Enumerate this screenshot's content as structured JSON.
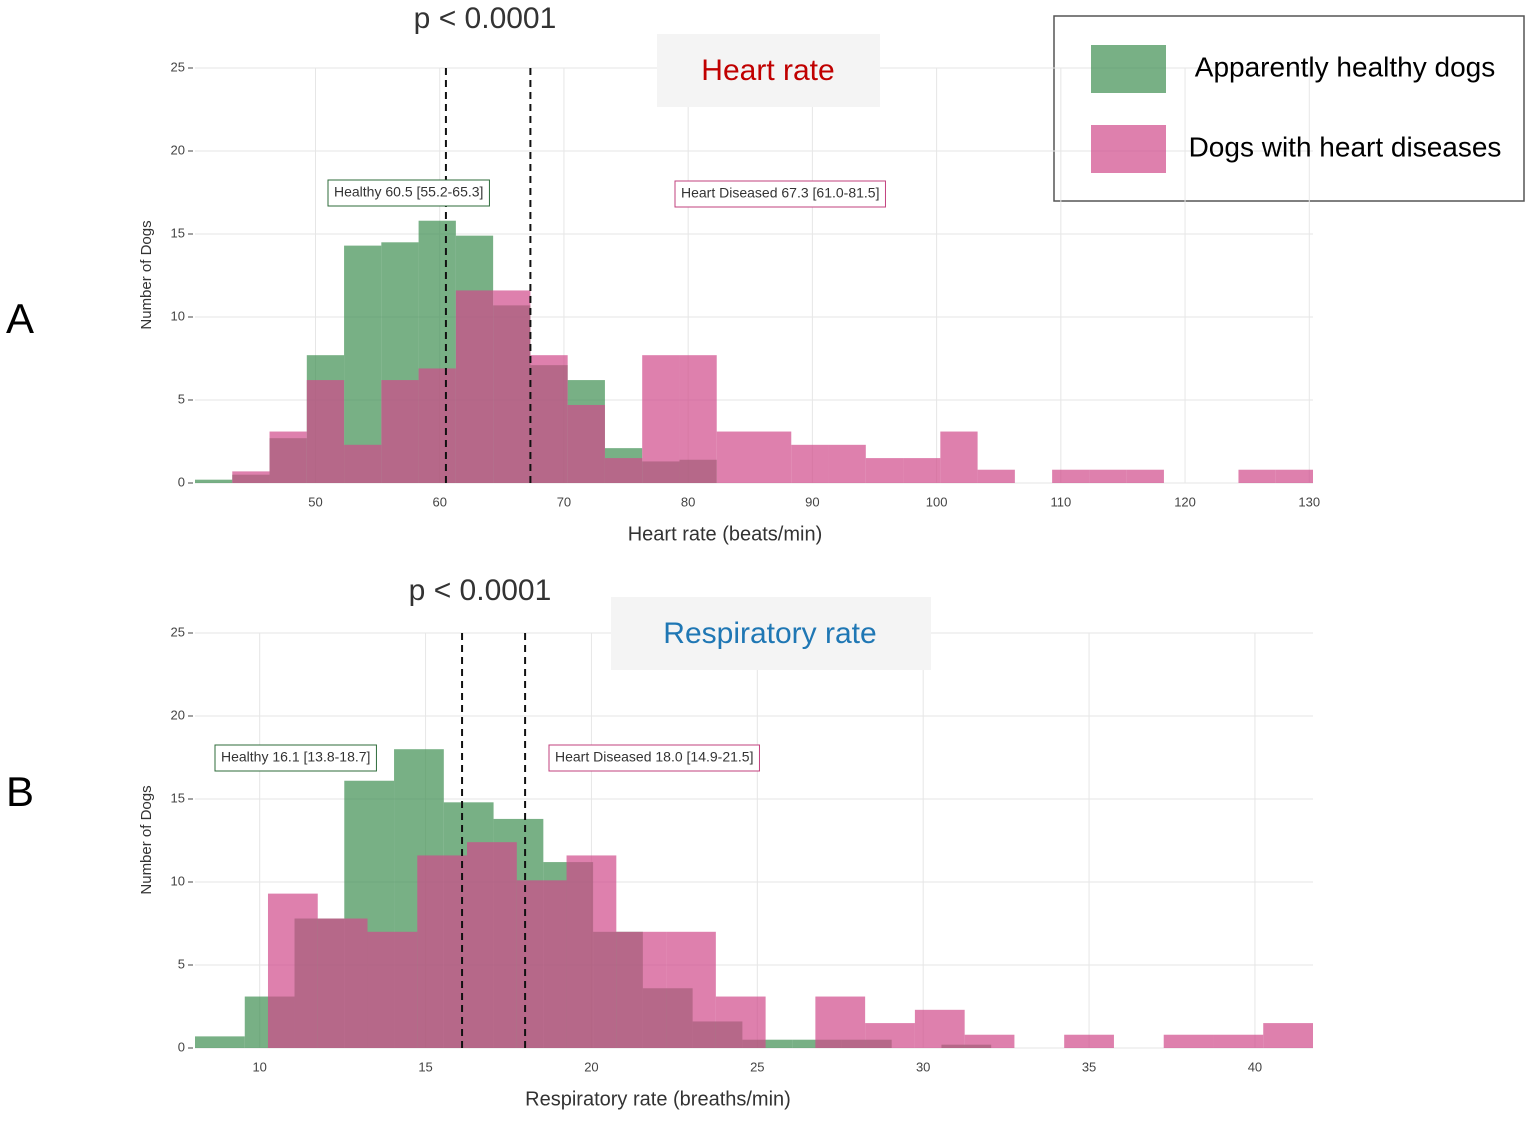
{
  "chart_data": [
    {
      "type": "histogram",
      "panel_label": "A",
      "title": "Heart rate",
      "title_color": "#c00000",
      "annotation": "p < 0.0001",
      "x_label": "Heart rate (beats/min)",
      "y_label": "Number of Dogs",
      "xlim": [
        40.3,
        130.3
      ],
      "ylim": [
        0,
        25
      ],
      "xticks": [
        50,
        60,
        70,
        80,
        90,
        100,
        110,
        120,
        130
      ],
      "yticks": [
        0,
        5,
        10,
        15,
        20,
        25
      ],
      "grid": true,
      "medians": [
        60.5,
        67.3
      ],
      "median_labels": [
        {
          "text": "Healthy 60.5 [55.2-65.3]",
          "color": "#2e6b3a"
        },
        {
          "text": "Heart Diseased 67.3 [61.0-81.5]",
          "color": "#c2407e"
        }
      ],
      "series": [
        {
          "name": "Apparently healthy dogs",
          "color": "#3f8f51",
          "bins": [
            40.3,
            43.3,
            46.3,
            49.3,
            52.3,
            55.3,
            58.3,
            61.3,
            64.3,
            67.3,
            70.3,
            73.3,
            76.3,
            79.3,
            82.3
          ],
          "values": [
            0.2,
            0.5,
            2.7,
            7.7,
            14.3,
            14.5,
            15.8,
            14.9,
            10.7,
            7.1,
            6.2,
            2.1,
            1.3,
            1.4
          ]
        },
        {
          "name": "Dogs with heart diseases",
          "color": "#d04a8a",
          "bins": [
            43.3,
            46.3,
            49.3,
            52.3,
            55.3,
            58.3,
            61.3,
            64.3,
            67.3,
            70.3,
            73.3,
            76.3,
            79.3,
            82.3,
            85.3,
            88.3,
            91.3,
            94.3,
            97.3,
            100.3,
            103.3,
            106.3,
            109.3,
            112.3,
            115.3,
            118.3,
            121.3,
            124.3,
            127.3,
            130.3
          ],
          "values": [
            0.7,
            3.1,
            6.2,
            2.3,
            6.2,
            6.9,
            11.6,
            11.6,
            7.7,
            4.7,
            1.5,
            7.7,
            7.7,
            3.1,
            3.1,
            2.3,
            2.3,
            1.5,
            1.5,
            3.1,
            0.8,
            0,
            0.8,
            0.8,
            0.8,
            0,
            0,
            0.8,
            0.8
          ]
        }
      ]
    },
    {
      "type": "histogram",
      "panel_label": "B",
      "title": "Respiratory rate",
      "title_color": "#1f77b4",
      "annotation": "p < 0.0001",
      "x_label": "Respiratory rate (breaths/min)",
      "y_label": "Number of Dogs",
      "xlim": [
        8.05,
        41.75
      ],
      "ylim": [
        0,
        25
      ],
      "xticks": [
        10,
        15,
        20,
        25,
        30,
        35,
        40
      ],
      "yticks": [
        0,
        5,
        10,
        15,
        20,
        25
      ],
      "grid": true,
      "medians": [
        16.1,
        18.0
      ],
      "median_labels": [
        {
          "text": "Healthy 16.1 [13.8-18.7]",
          "color": "#2e6b3a"
        },
        {
          "text": "Heart Diseased 18.0 [14.9-21.5]",
          "color": "#c2407e"
        }
      ],
      "series": [
        {
          "color": "#3f8f51",
          "bins": [
            8.05,
            9.55,
            11.05,
            12.55,
            14.05,
            15.55,
            17.05,
            18.55,
            20.05,
            21.55,
            23.05,
            24.55,
            26.05,
            27.55,
            29.05,
            30.55,
            32.05
          ],
          "values": [
            0.7,
            3.1,
            7.8,
            16.1,
            18.0,
            14.8,
            13.8,
            11.2,
            7.0,
            3.6,
            1.6,
            0.5,
            0.5,
            0.5,
            0,
            0.2
          ]
        },
        {
          "color": "#d04a8a",
          "bins": [
            10.25,
            11.75,
            13.25,
            14.75,
            16.25,
            17.75,
            19.25,
            20.75,
            22.25,
            23.75,
            25.25,
            26.75,
            28.25,
            29.75,
            31.25,
            32.75,
            34.25,
            35.75,
            37.25,
            38.75,
            40.25,
            41.75
          ],
          "values": [
            9.3,
            7.8,
            7.0,
            11.6,
            12.4,
            10.1,
            11.6,
            7.0,
            7.0,
            3.1,
            0,
            3.1,
            1.5,
            2.3,
            0.8,
            0,
            0.8,
            0,
            0.8,
            0.8,
            1.5
          ]
        }
      ]
    }
  ]
}
